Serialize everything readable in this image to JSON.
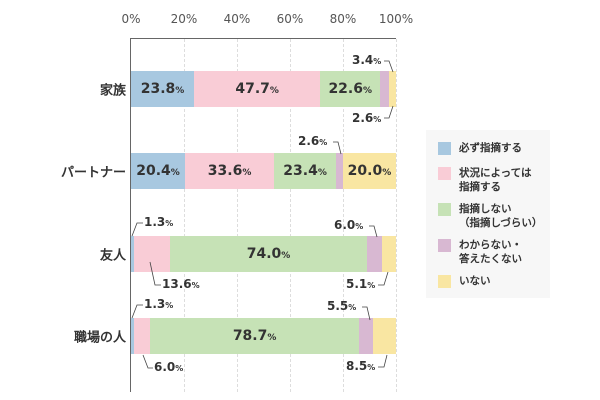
{
  "chart_data": {
    "type": "bar",
    "orientation": "horizontal",
    "stacked": true,
    "title": "",
    "xlabel": "",
    "ylabel": "",
    "xlim": [
      0,
      100
    ],
    "x_ticks": [
      "0%",
      "20%",
      "40%",
      "60%",
      "80%",
      "100%"
    ],
    "grid": true,
    "legend_position": "right",
    "categories": [
      "家族",
      "パートナー",
      "友人",
      "職場の人"
    ],
    "series": [
      {
        "name": "必ず指摘する",
        "color": "#a8c8e0",
        "values": [
          23.8,
          20.4,
          1.3,
          1.3
        ]
      },
      {
        "name": "状況によっては指摘する",
        "color": "#f9ccd6",
        "values": [
          47.7,
          33.6,
          13.6,
          6.0
        ]
      },
      {
        "name": "指摘しない（指摘しづらい）",
        "color": "#c6e2b6",
        "values": [
          22.6,
          23.4,
          74.0,
          78.7
        ]
      },
      {
        "name": "わからない・答えたくない",
        "color": "#d8b8d2",
        "values": [
          3.4,
          2.6,
          6.0,
          5.5
        ]
      },
      {
        "name": "いない",
        "color": "#f9e6a2",
        "values": [
          2.6,
          20.0,
          5.1,
          8.5
        ]
      }
    ]
  },
  "axis": {
    "ticks": [
      "0%",
      "20%",
      "40%",
      "60%",
      "80%",
      "100%"
    ]
  },
  "rows": [
    {
      "label": "家族",
      "inside": [
        "23.8",
        "47.7",
        "22.6",
        "",
        ""
      ],
      "callouts": {
        "c3": "3.4",
        "c4": "2.6"
      }
    },
    {
      "label": "パートナー",
      "inside": [
        "20.4",
        "33.6",
        "23.4",
        "",
        "20.0"
      ],
      "callouts": {
        "c3": "2.6"
      }
    },
    {
      "label": "友人",
      "inside": [
        "",
        "",
        "74.0",
        "",
        ""
      ],
      "callouts": {
        "c0": "1.3",
        "c1": "13.6",
        "c3": "6.0",
        "c4": "5.1"
      }
    },
    {
      "label": "職場の人",
      "inside": [
        "",
        "",
        "78.7",
        "",
        ""
      ],
      "callouts": {
        "c0": "1.3",
        "c1": "6.0",
        "c3": "5.5",
        "c4": "8.5"
      }
    }
  ],
  "percent_sign": "%",
  "legend": {
    "items": [
      {
        "label": "必ず指摘する",
        "color": "#a8c8e0"
      },
      {
        "label": "状況によっては\n指摘する",
        "color": "#f9ccd6"
      },
      {
        "label": "指摘しない\n（指摘しづらい）",
        "color": "#c6e2b6"
      },
      {
        "label": "わからない・\n答えたくない",
        "color": "#d8b8d2"
      },
      {
        "label": "いない",
        "color": "#f9e6a2"
      }
    ]
  }
}
